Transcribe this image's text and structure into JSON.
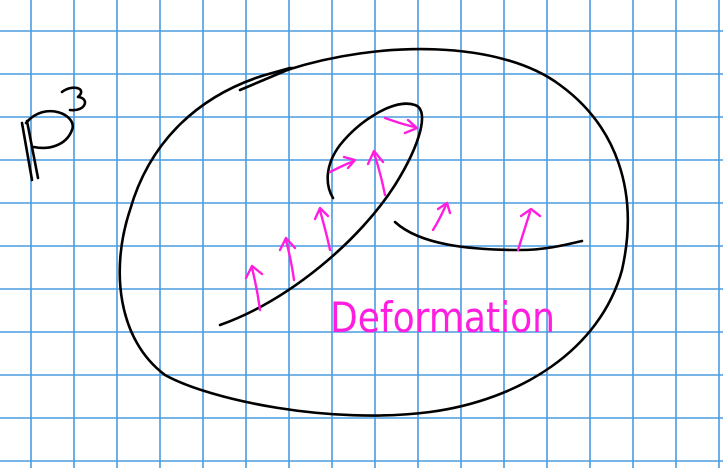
{
  "paper": {
    "background_color": "#ffffff",
    "grid_color": "#4a9be0"
  },
  "ink": {
    "black": "#000000",
    "magenta": "#ff1ee0"
  },
  "labels": {
    "space_symbol": "ℙ³",
    "deformation": "Deformation"
  }
}
